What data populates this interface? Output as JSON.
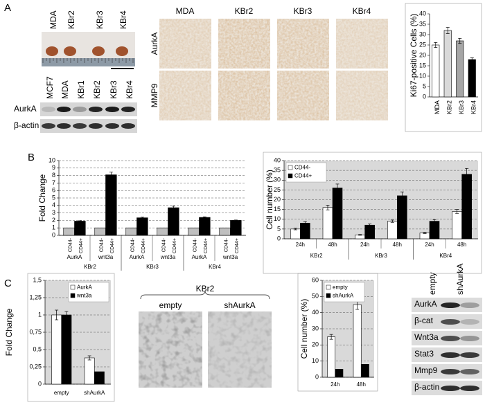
{
  "figure": {
    "panel_labels": [
      "A",
      "B",
      "C"
    ],
    "tumor_labels": [
      "MDA",
      "KBr2",
      "KBr3",
      "KBr4"
    ],
    "blot1": {
      "lanes": [
        "MCF7",
        "MDA",
        "KBr1",
        "KBr2",
        "KBr3",
        "KBr4"
      ],
      "rows": [
        "AurkA",
        "β-actin"
      ]
    },
    "ihc": {
      "columns": [
        "MDA",
        "KBr2",
        "KBr3",
        "KBr4"
      ],
      "rows": [
        "AurkA",
        "MMP9"
      ]
    },
    "c_images": {
      "group": "KBr2",
      "columns": [
        "empty",
        "shAurkA"
      ]
    },
    "blot2": {
      "lanes": [
        "empty",
        "shAurkA"
      ],
      "rows": [
        "AurkA",
        "β-cat",
        "Wnt3a",
        "Stat3",
        "Mmp9",
        "β-actin"
      ]
    }
  },
  "chart_data": [
    {
      "type": "bar",
      "y_label": "Ki67-positive Cells (%)",
      "categories": [
        "MDA",
        "KBr2",
        "KBr3",
        "KBr4"
      ],
      "values": [
        25,
        32,
        27,
        18
      ],
      "errors": [
        1.2,
        1.5,
        1.2,
        0.8
      ],
      "colors": [
        "#ffffff",
        "#d9d9d9",
        "#a6a6a6",
        "#000000"
      ],
      "ylim": [
        0,
        40
      ],
      "yticks": [
        0,
        5,
        10,
        15,
        20,
        25,
        30,
        35,
        40
      ],
      "grid": false,
      "legend": false
    },
    {
      "type": "bar",
      "y_label": "Fold Change",
      "categories": [
        "AurkA",
        "wnt3a",
        "AurkA",
        "wnt3a",
        "AurkA",
        "wnt3a"
      ],
      "groups": [
        "KBr2",
        "KBr3",
        "KBr4"
      ],
      "series": [
        {
          "name": "CD44-",
          "color": "#bfbfbf",
          "values": [
            1,
            1,
            1,
            1,
            1,
            1
          ],
          "errors": [
            0,
            0,
            0,
            0,
            0,
            0
          ]
        },
        {
          "name": "CD44+",
          "color": "#000000",
          "values": [
            1.9,
            8.1,
            2.35,
            3.7,
            2.4,
            2.0
          ],
          "errors": [
            0.05,
            0.35,
            0.08,
            0.2,
            0.08,
            0.05
          ]
        }
      ],
      "ylim": [
        0,
        10
      ],
      "yticks": [
        0,
        1,
        2,
        3,
        4,
        5,
        6,
        7,
        8,
        9,
        10
      ],
      "grid": true,
      "legend": false
    },
    {
      "type": "bar",
      "y_label": "Cell number (%)",
      "categories": [
        "24h",
        "48h",
        "24h",
        "48h",
        "24h",
        "48h"
      ],
      "groups": [
        "KBr2",
        "KBr3",
        "KBr4"
      ],
      "series": [
        {
          "name": "CD44-",
          "color": "#ffffff",
          "values": [
            5,
            16,
            2,
            9,
            3,
            14
          ],
          "errors": [
            0.4,
            1.2,
            0.2,
            0.6,
            0.3,
            1
          ]
        },
        {
          "name": "CD44+",
          "color": "#000000",
          "values": [
            8,
            26,
            7,
            22,
            9,
            33
          ],
          "errors": [
            0.8,
            2,
            0.6,
            2,
            0.8,
            3
          ]
        }
      ],
      "ylim": [
        0,
        40
      ],
      "yticks": [
        0,
        5,
        10,
        15,
        20,
        25,
        30,
        35,
        40
      ],
      "grid": true,
      "legend": "top-left"
    },
    {
      "type": "bar",
      "y_label": "Fold Change",
      "categories": [
        "empty",
        "shAurkA"
      ],
      "series": [
        {
          "name": "AurkA",
          "color": "#ffffff",
          "values": [
            1,
            0.38
          ],
          "errors": [
            0.07,
            0.03
          ]
        },
        {
          "name": "wnt3a",
          "color": "#000000",
          "values": [
            1,
            0.18
          ],
          "errors": [
            0.05,
            0
          ]
        }
      ],
      "ylim": [
        0,
        1.5
      ],
      "yticks": [
        0,
        {
          "value": 0.25,
          "label": "0,25"
        },
        {
          "value": 0.5,
          "label": "0,5"
        },
        {
          "value": 0.75,
          "label": "0,75"
        },
        1,
        {
          "value": 1.25,
          "label": "1,25"
        },
        {
          "value": 1.5,
          "label": "1,5"
        }
      ],
      "grid": true,
      "legend": "top-right"
    },
    {
      "type": "bar",
      "y_label": "Cell number (%)",
      "categories": [
        "24h",
        "48h"
      ],
      "series": [
        {
          "name": "empty",
          "color": "#ffffff",
          "values": [
            25,
            45
          ],
          "errors": [
            1.5,
            3
          ]
        },
        {
          "name": "shAurkA",
          "color": "#000000",
          "values": [
            5,
            8
          ],
          "errors": [
            0,
            0
          ]
        }
      ],
      "ylim": [
        0,
        60
      ],
      "yticks": [
        0,
        10,
        20,
        30,
        40,
        50,
        60
      ],
      "grid": true,
      "legend": "top-left"
    }
  ]
}
